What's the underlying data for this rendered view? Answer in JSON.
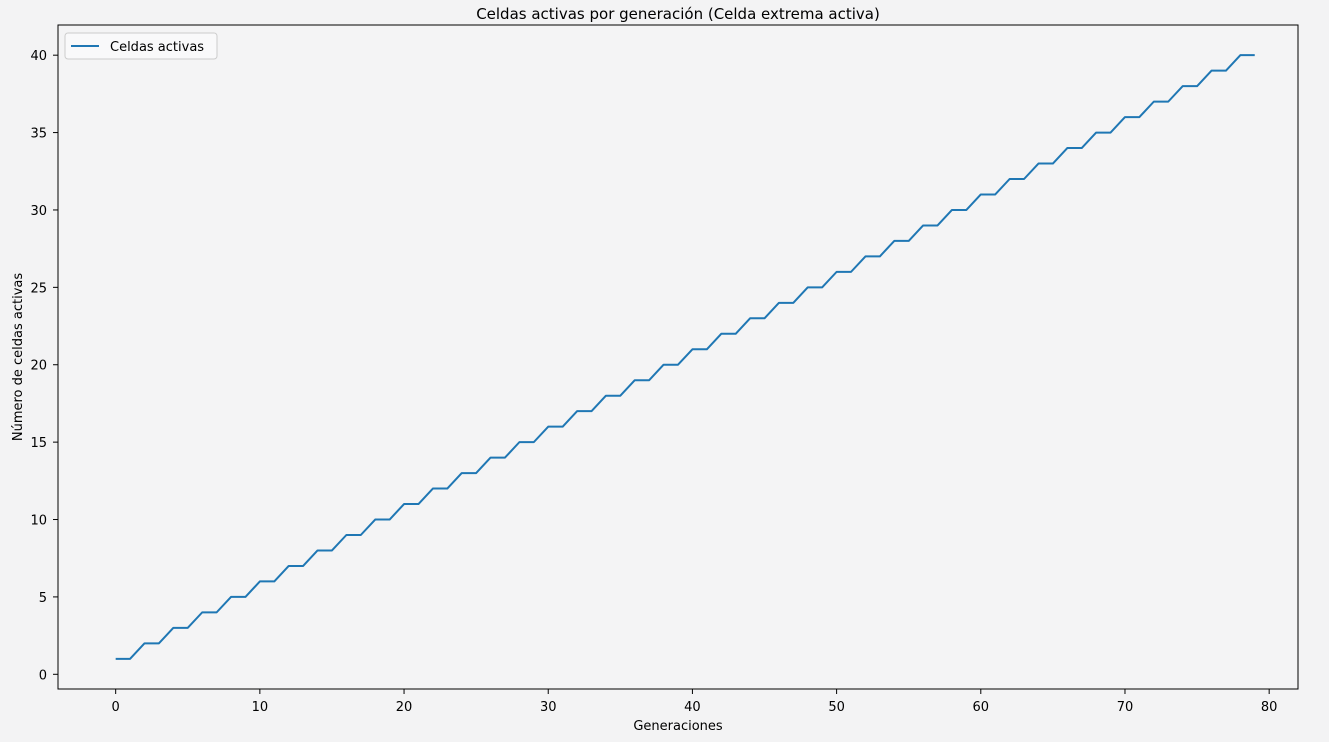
{
  "chart_data": {
    "type": "line",
    "title": "Celdas activas por generación (Celda extrema activa)",
    "xlabel": "Generaciones",
    "ylabel": "Número de celdas activas",
    "xlim": [
      -4,
      82
    ],
    "ylim": [
      -0.95,
      41.95
    ],
    "xticks": [
      0,
      10,
      20,
      30,
      40,
      50,
      60,
      70,
      80
    ],
    "yticks": [
      0,
      5,
      10,
      15,
      20,
      25,
      30,
      35,
      40
    ],
    "grid": false,
    "legend_position": "upper-left",
    "x": [
      0,
      1,
      2,
      3,
      4,
      5,
      6,
      7,
      8,
      9,
      10,
      11,
      12,
      13,
      14,
      15,
      16,
      17,
      18,
      19,
      20,
      21,
      22,
      23,
      24,
      25,
      26,
      27,
      28,
      29,
      30,
      31,
      32,
      33,
      34,
      35,
      36,
      37,
      38,
      39,
      40,
      41,
      42,
      43,
      44,
      45,
      46,
      47,
      48,
      49,
      50,
      51,
      52,
      53,
      54,
      55,
      56,
      57,
      58,
      59,
      60,
      61,
      62,
      63,
      64,
      65,
      66,
      67,
      68,
      69,
      70,
      71,
      72,
      73,
      74,
      75,
      76,
      77,
      78,
      79
    ],
    "series": [
      {
        "name": "Celdas activas",
        "color": "#1f77b4",
        "values": [
          1,
          1,
          2,
          2,
          3,
          3,
          4,
          4,
          5,
          5,
          6,
          6,
          7,
          7,
          8,
          8,
          9,
          9,
          10,
          10,
          11,
          11,
          12,
          12,
          13,
          13,
          14,
          14,
          15,
          15,
          16,
          16,
          17,
          17,
          18,
          18,
          19,
          19,
          20,
          20,
          21,
          21,
          22,
          22,
          23,
          23,
          24,
          24,
          25,
          25,
          26,
          26,
          27,
          27,
          28,
          28,
          29,
          29,
          30,
          30,
          31,
          31,
          32,
          32,
          33,
          33,
          34,
          34,
          35,
          35,
          36,
          36,
          37,
          37,
          38,
          38,
          39,
          39,
          40,
          40
        ]
      }
    ]
  },
  "colors": {
    "background": "#f3f3f4",
    "axes_background": "#f4f4f5",
    "series_line": "#1f77b4",
    "legend_border": "#cccccc"
  }
}
